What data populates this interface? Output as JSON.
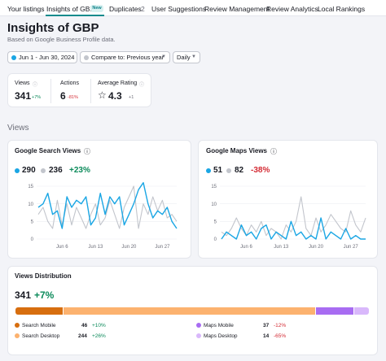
{
  "tabs": [
    {
      "label": "Your listings"
    },
    {
      "label": "Insights of GBP",
      "badge": "New",
      "active": true
    },
    {
      "label": "Duplicates",
      "count": "2"
    },
    {
      "label": "User Suggestions"
    },
    {
      "label": "Review Management"
    },
    {
      "label": "Review Analytics"
    },
    {
      "label": "Local Rankings"
    }
  ],
  "header": {
    "title": "Insights of GBP",
    "subtitle": "Based on Google Business Profile data."
  },
  "filters": {
    "date_range": "Jun 1 - Jun 30, 2024",
    "compare": "Compare to: Previous year",
    "granularity": "Daily"
  },
  "summary": {
    "views": {
      "label": "Views",
      "value": "341",
      "delta": "+7%"
    },
    "actions": {
      "label": "Actions",
      "value": "6",
      "delta": "-81%"
    },
    "rating": {
      "label": "Average Rating",
      "value": "4.3",
      "delta": "+1"
    }
  },
  "section_views_label": "Views",
  "colors": {
    "current": "#1aa6e4",
    "previous": "#c2c5cc",
    "positive": "#0b8a5a",
    "negative": "#d42b34",
    "search_mobile": "#d76e0f",
    "search_desktop": "#fcb26f",
    "maps_mobile": "#a86cf2",
    "maps_desktop": "#d9b8fb",
    "accent": "#0f8b8d"
  },
  "search_card": {
    "title": "Google Search Views",
    "current": "290",
    "previous": "236",
    "delta": "+23%"
  },
  "maps_card": {
    "title": "Google Maps Views",
    "current": "51",
    "previous": "82",
    "delta": "-38%"
  },
  "chart_data": [
    {
      "type": "line",
      "title": "Google Search Views",
      "x_ticks": [
        "Jun 6",
        "Jun 13",
        "Jun 20",
        "Jun 27"
      ],
      "y_ticks": [
        "0",
        "5",
        "10",
        "15"
      ],
      "ylim": [
        0,
        15
      ],
      "x": [
        1,
        2,
        3,
        4,
        5,
        6,
        7,
        8,
        9,
        10,
        11,
        12,
        13,
        14,
        15,
        16,
        17,
        18,
        19,
        20,
        21,
        22,
        23,
        24,
        25,
        26,
        27,
        28,
        29,
        30
      ],
      "series": [
        {
          "values": [
            9,
            10,
            13,
            7,
            8,
            3,
            12,
            9,
            11,
            10,
            12,
            4,
            6,
            13,
            7,
            12,
            10,
            12,
            4,
            7,
            10,
            14,
            16,
            10,
            6,
            8,
            7,
            9,
            5,
            3
          ]
        },
        {
          "values": [
            7,
            9,
            5,
            3,
            11,
            4,
            10,
            4,
            9,
            6,
            3,
            7,
            10,
            4,
            6,
            11,
            7,
            3,
            9,
            12,
            15,
            3,
            10,
            7,
            12,
            8,
            11,
            6,
            7,
            5
          ]
        }
      ]
    },
    {
      "type": "line",
      "title": "Google Maps Views",
      "x_ticks": [
        "Jun 6",
        "Jun 13",
        "Jun 20",
        "Jun 27"
      ],
      "y_ticks": [
        "0",
        "5",
        "10",
        "15"
      ],
      "ylim": [
        0,
        15
      ],
      "x": [
        1,
        2,
        3,
        4,
        5,
        6,
        7,
        8,
        9,
        10,
        11,
        12,
        13,
        14,
        15,
        16,
        17,
        18,
        19,
        20,
        21,
        22,
        23,
        24,
        25,
        26,
        27,
        28,
        29,
        30
      ],
      "series": [
        {
          "values": [
            0,
            2,
            1,
            0,
            4,
            1,
            2,
            0,
            3,
            4,
            0,
            2,
            1,
            0,
            5,
            1,
            2,
            0,
            1,
            0,
            6,
            0,
            2,
            1,
            0,
            3,
            0,
            1,
            0,
            0
          ]
        },
        {
          "values": [
            2,
            1,
            3,
            6,
            3,
            1,
            4,
            2,
            5,
            1,
            3,
            2,
            0,
            4,
            2,
            5,
            12,
            3,
            1,
            6,
            2,
            4,
            7,
            5,
            3,
            2,
            8,
            4,
            2,
            6
          ]
        }
      ]
    }
  ],
  "distribution": {
    "title": "Views Distribution",
    "total": "341",
    "total_delta": "+7%",
    "segments": [
      {
        "name": "Search Mobile",
        "value": 46,
        "delta": "+10%"
      },
      {
        "name": "Search Desktop",
        "value": 244,
        "delta": "+26%"
      },
      {
        "name": "Maps Mobile",
        "value": 37,
        "delta": "-12%"
      },
      {
        "name": "Maps Desktop",
        "value": 14,
        "delta": "-65%"
      }
    ]
  }
}
